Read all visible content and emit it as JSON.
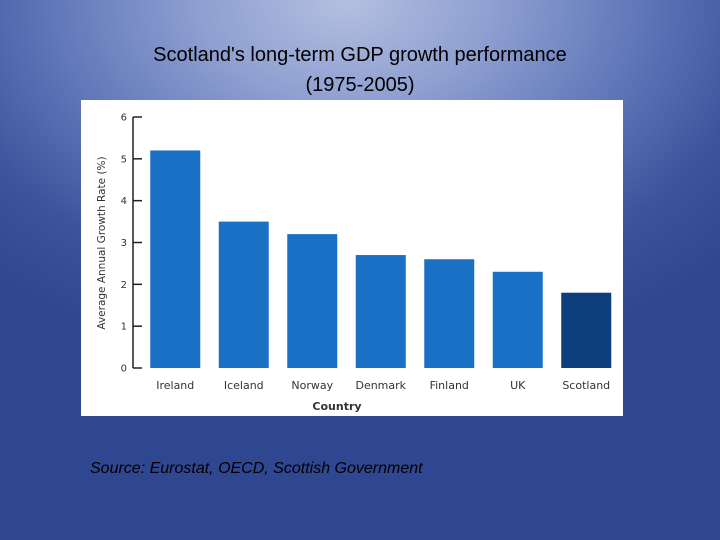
{
  "slide": {
    "title_line_1": "Scotland's long-term GDP growth performance",
    "title_line_2": "(1975-2005)",
    "source": "Source: Eurostat, OECD, Scottish Government"
  },
  "chart_data": {
    "type": "bar",
    "categories": [
      "Ireland",
      "Iceland",
      "Norway",
      "Denmark",
      "Finland",
      "UK",
      "Scotland"
    ],
    "values": [
      5.2,
      3.5,
      3.2,
      2.7,
      2.6,
      2.3,
      1.8
    ],
    "xlabel": "Country",
    "ylabel": "Average Annual Growth Rate (%)",
    "ylim": [
      0,
      6
    ],
    "yticks": [
      0,
      1,
      2,
      3,
      4,
      5,
      6
    ],
    "grid": false,
    "colors": {
      "bar": "#1a70c4",
      "highlight": "#0f3e7c",
      "highlight_category": "Scotland",
      "axis": "#222222",
      "text": "#333333"
    }
  }
}
